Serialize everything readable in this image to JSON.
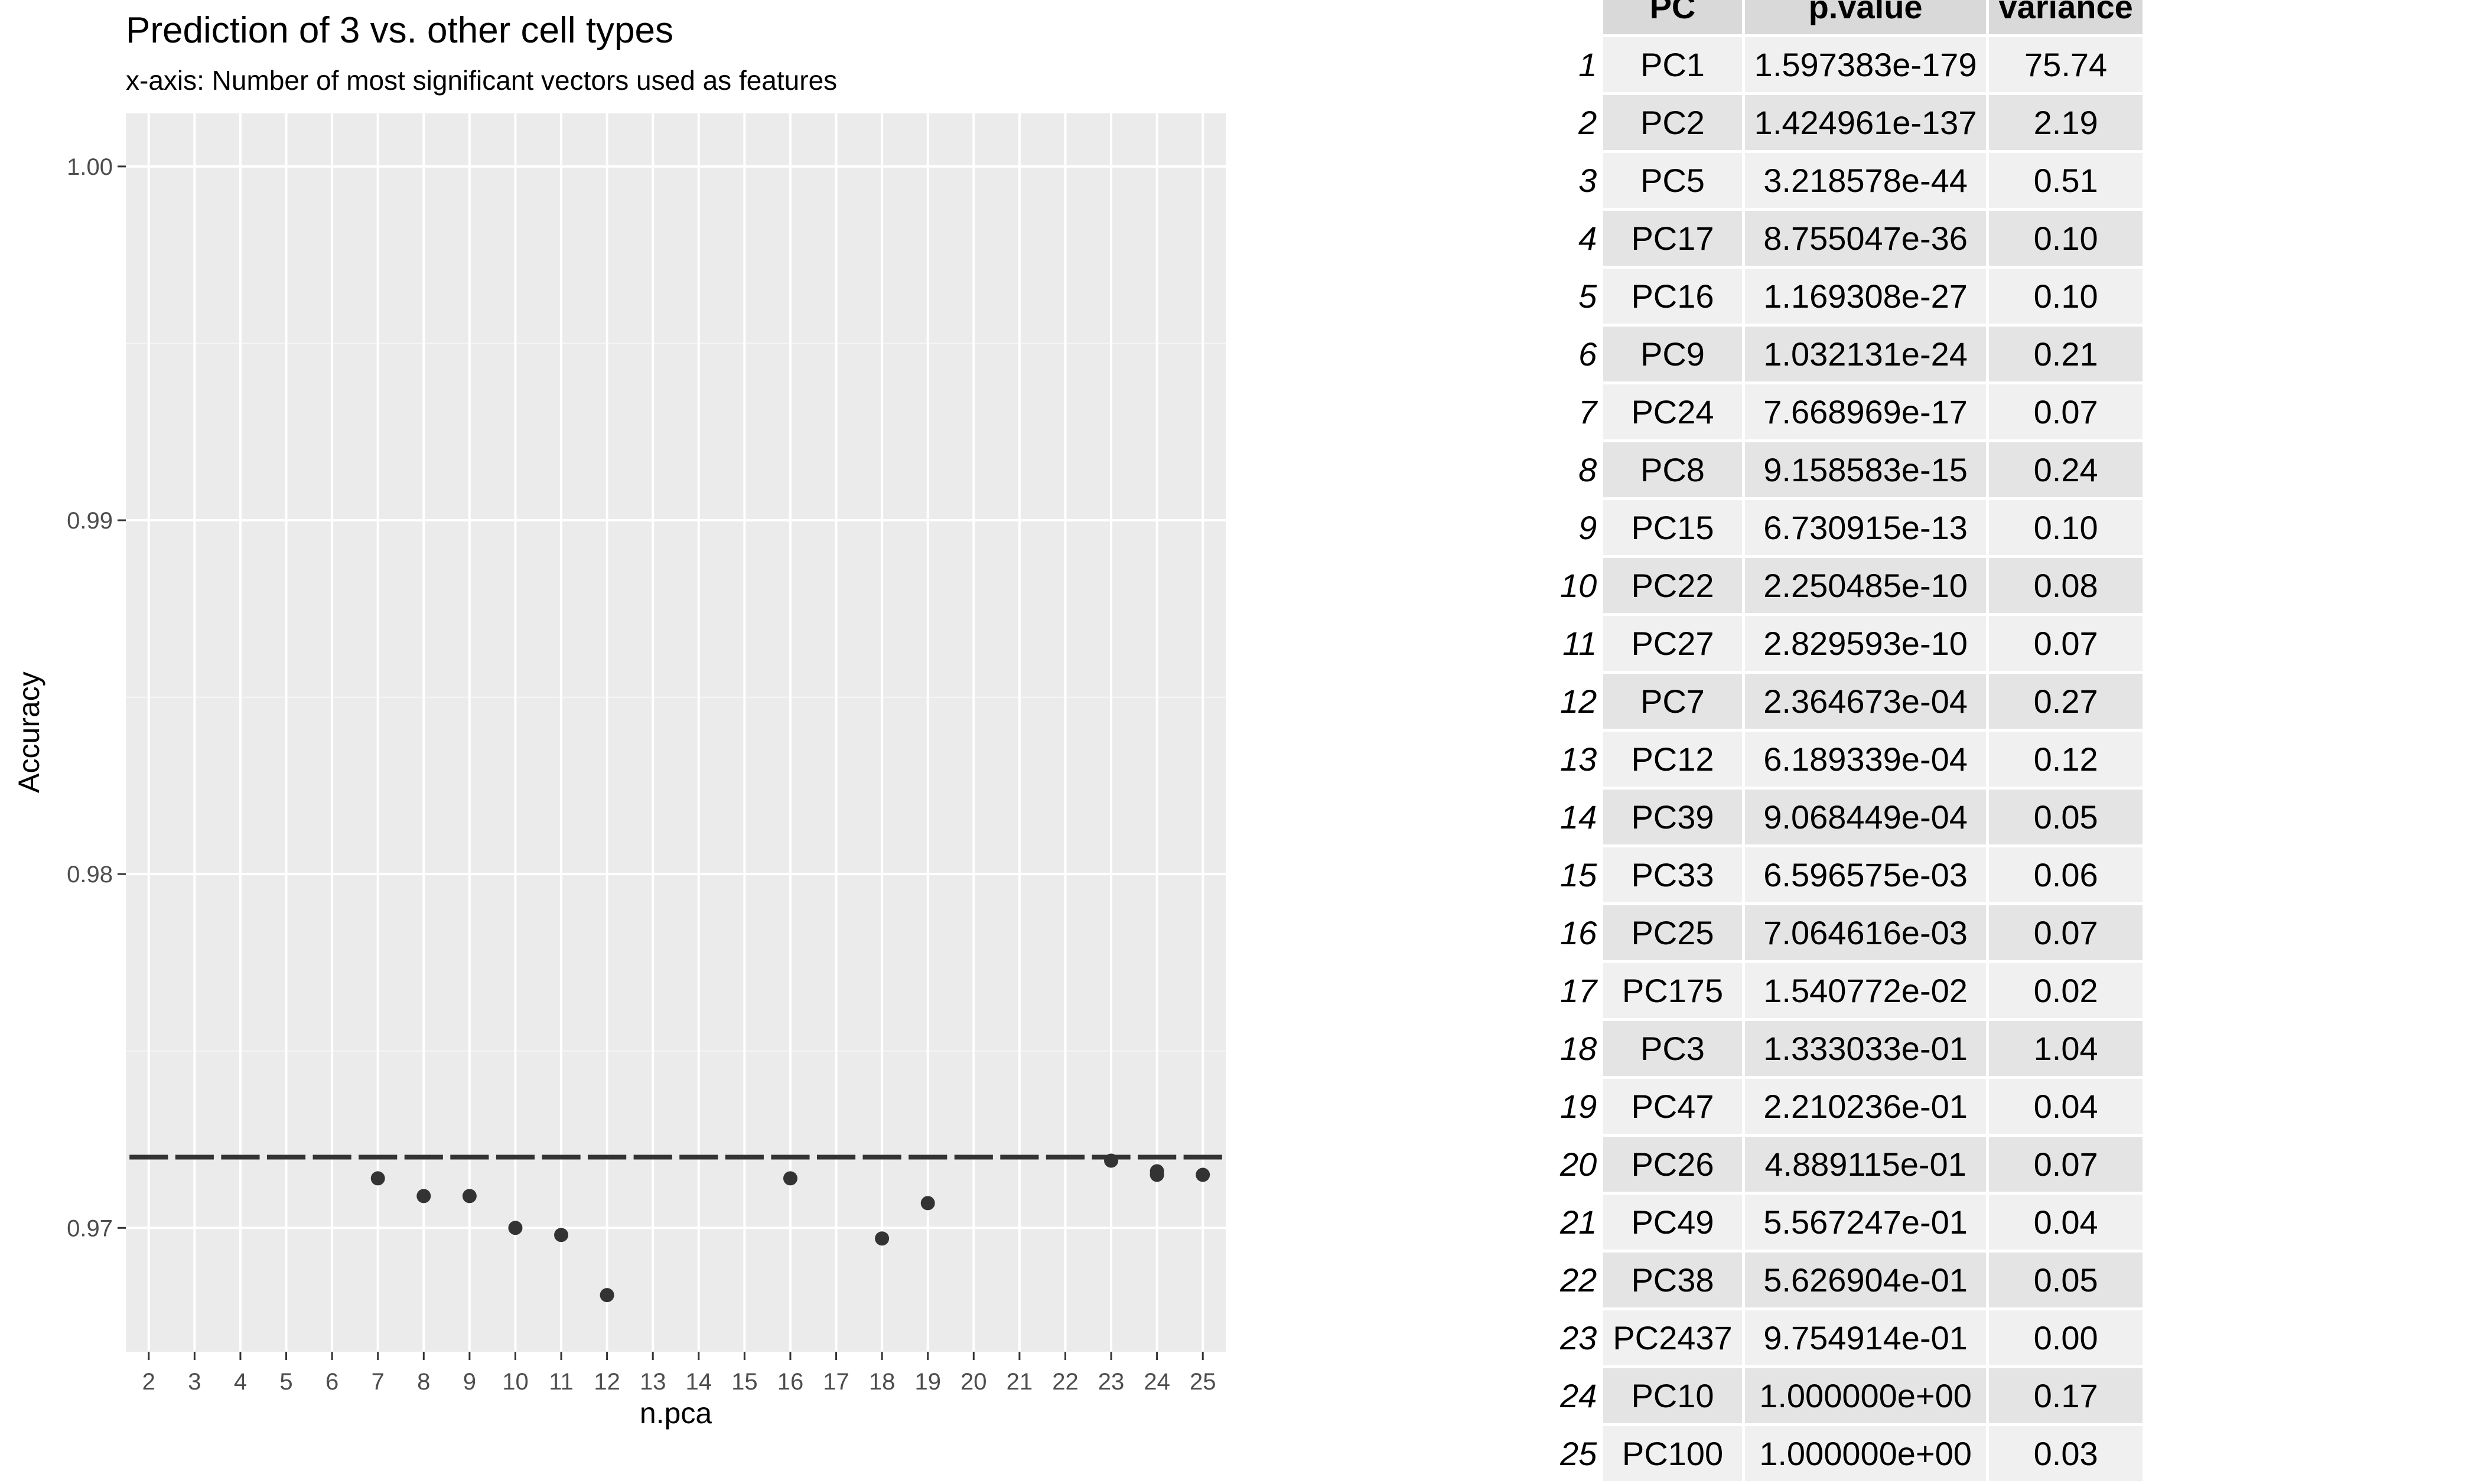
{
  "chart_data": {
    "type": "scatter",
    "title": "Prediction of 3 vs. other cell types",
    "subtitle": "x-axis: Number of most significant vectors used as features",
    "xlabel": "n.pca",
    "ylabel": "Accuracy",
    "x_categories": [
      "2",
      "3",
      "4",
      "5",
      "6",
      "7",
      "8",
      "9",
      "10",
      "11",
      "12",
      "13",
      "14",
      "15",
      "16",
      "17",
      "18",
      "19",
      "20",
      "21",
      "22",
      "23",
      "24",
      "25"
    ],
    "y_ticks": [
      0.97,
      0.98,
      0.99,
      1.0
    ],
    "y_tick_labels": [
      "0.97",
      "0.98",
      "0.99",
      "1.00"
    ],
    "ylim": [
      0.9665,
      1.0015
    ],
    "baseline": 0.972,
    "points": [
      {
        "x": "7",
        "y": 0.9714
      },
      {
        "x": "8",
        "y": 0.9709
      },
      {
        "x": "9",
        "y": 0.9709
      },
      {
        "x": "10",
        "y": 0.97
      },
      {
        "x": "11",
        "y": 0.9698
      },
      {
        "x": "12",
        "y": 0.9681
      },
      {
        "x": "16",
        "y": 0.9714
      },
      {
        "x": "18",
        "y": 0.9697
      },
      {
        "x": "19",
        "y": 0.9707
      },
      {
        "x": "23",
        "y": 0.9719
      },
      {
        "x": "24",
        "y": 0.9716
      },
      {
        "x": "24",
        "y": 0.9715
      },
      {
        "x": "25",
        "y": 0.9715
      }
    ],
    "grid": true,
    "colors": {
      "panel": "#ebebeb",
      "grid_major": "#ffffff",
      "grid_minor": "#f5f5f5",
      "points": "#333333",
      "baseline": "#333333",
      "tick_text": "#4d4d4d"
    }
  },
  "table": {
    "columns": [
      "PC",
      "p.value",
      "variance"
    ],
    "rows": [
      {
        "idx": "1",
        "pc": "PC1",
        "p": "1.597383e-179",
        "v": "75.74"
      },
      {
        "idx": "2",
        "pc": "PC2",
        "p": "1.424961e-137",
        "v": "2.19"
      },
      {
        "idx": "3",
        "pc": "PC5",
        "p": "3.218578e-44",
        "v": "0.51"
      },
      {
        "idx": "4",
        "pc": "PC17",
        "p": "8.755047e-36",
        "v": "0.10"
      },
      {
        "idx": "5",
        "pc": "PC16",
        "p": "1.169308e-27",
        "v": "0.10"
      },
      {
        "idx": "6",
        "pc": "PC9",
        "p": "1.032131e-24",
        "v": "0.21"
      },
      {
        "idx": "7",
        "pc": "PC24",
        "p": "7.668969e-17",
        "v": "0.07"
      },
      {
        "idx": "8",
        "pc": "PC8",
        "p": "9.158583e-15",
        "v": "0.24"
      },
      {
        "idx": "9",
        "pc": "PC15",
        "p": "6.730915e-13",
        "v": "0.10"
      },
      {
        "idx": "10",
        "pc": "PC22",
        "p": "2.250485e-10",
        "v": "0.08"
      },
      {
        "idx": "11",
        "pc": "PC27",
        "p": "2.829593e-10",
        "v": "0.07"
      },
      {
        "idx": "12",
        "pc": "PC7",
        "p": "2.364673e-04",
        "v": "0.27"
      },
      {
        "idx": "13",
        "pc": "PC12",
        "p": "6.189339e-04",
        "v": "0.12"
      },
      {
        "idx": "14",
        "pc": "PC39",
        "p": "9.068449e-04",
        "v": "0.05"
      },
      {
        "idx": "15",
        "pc": "PC33",
        "p": "6.596575e-03",
        "v": "0.06"
      },
      {
        "idx": "16",
        "pc": "PC25",
        "p": "7.064616e-03",
        "v": "0.07"
      },
      {
        "idx": "17",
        "pc": "PC175",
        "p": "1.540772e-02",
        "v": "0.02"
      },
      {
        "idx": "18",
        "pc": "PC3",
        "p": "1.333033e-01",
        "v": "1.04"
      },
      {
        "idx": "19",
        "pc": "PC47",
        "p": "2.210236e-01",
        "v": "0.04"
      },
      {
        "idx": "20",
        "pc": "PC26",
        "p": "4.889115e-01",
        "v": "0.07"
      },
      {
        "idx": "21",
        "pc": "PC49",
        "p": "5.567247e-01",
        "v": "0.04"
      },
      {
        "idx": "22",
        "pc": "PC38",
        "p": "5.626904e-01",
        "v": "0.05"
      },
      {
        "idx": "23",
        "pc": "PC2437",
        "p": "9.754914e-01",
        "v": "0.00"
      },
      {
        "idx": "24",
        "pc": "PC10",
        "p": "1.000000e+00",
        "v": "0.17"
      },
      {
        "idx": "25",
        "pc": "PC100",
        "p": "1.000000e+00",
        "v": "0.03"
      }
    ]
  }
}
